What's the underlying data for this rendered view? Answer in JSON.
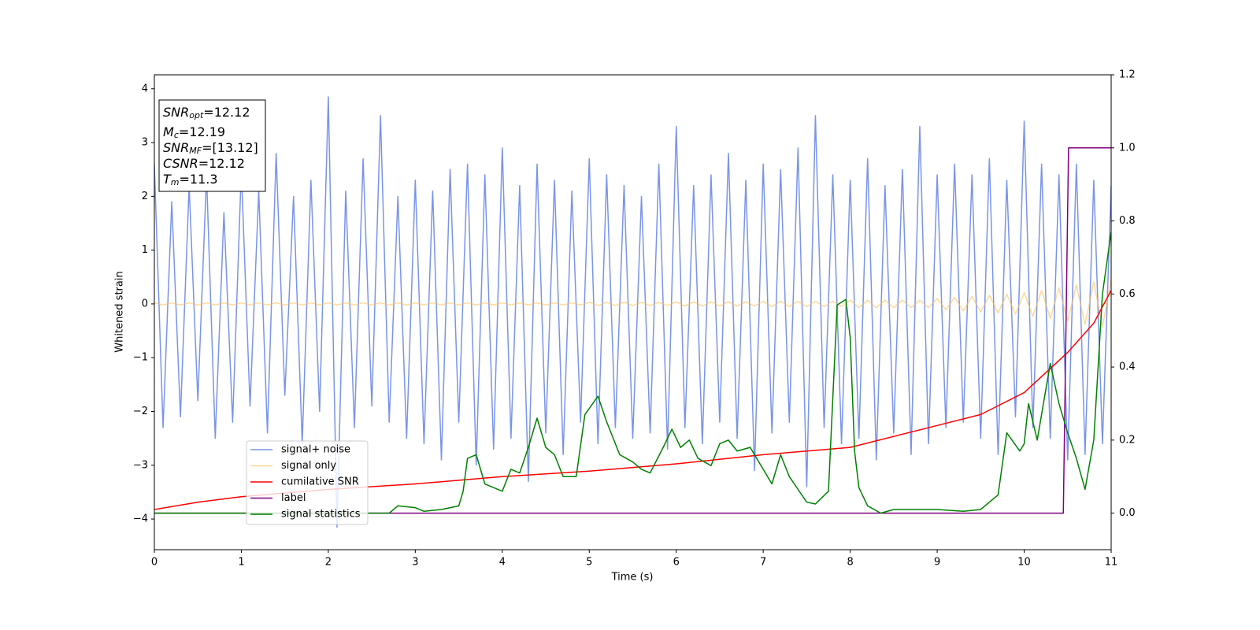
{
  "chart_data": {
    "type": "line",
    "xlabel": "Time (s)",
    "ylabel": "Whitened strain",
    "xlim": [
      0,
      11
    ],
    "xticks": [
      0,
      1,
      2,
      3,
      4,
      5,
      6,
      7,
      8,
      9,
      10,
      11
    ],
    "ylim": [
      -4.57,
      4.26
    ],
    "yticks": [
      {
        "value": -4,
        "label": "−4"
      },
      {
        "value": -3,
        "label": "−3"
      },
      {
        "value": -2,
        "label": "−2"
      },
      {
        "value": -1,
        "label": "−1"
      },
      0,
      1,
      2,
      3,
      4
    ],
    "y2lim": [
      -0.1,
      1.2
    ],
    "y2ticks": [
      {
        "value": 0,
        "label": "0.0"
      },
      0.2,
      0.4,
      0.6,
      0.8,
      {
        "value": 1,
        "label": "1.0"
      },
      1.2
    ],
    "grid": false,
    "legend_loc": "lower left",
    "annotation": [
      {
        "text": "SNR",
        "sub": "opt",
        "rest": "=12.12"
      },
      {
        "text": "M",
        "sub": "c",
        "rest": "=12.19"
      },
      {
        "text": "SNR",
        "sub": "MF",
        "rest": "=[13.12]"
      },
      {
        "text": "CSNR",
        "rest": "=12.12"
      },
      {
        "text": "T",
        "sub": "m",
        "rest": "=11.3"
      }
    ],
    "x": [
      0,
      0.1,
      0.2,
      0.3,
      0.4,
      0.5,
      0.6,
      0.7,
      0.8,
      0.9,
      1,
      1.1,
      1.2,
      1.3,
      1.4,
      1.5,
      1.6,
      1.7,
      1.8,
      1.9,
      2,
      2.1,
      2.2,
      2.3,
      2.4,
      2.5,
      2.6,
      2.7,
      2.8,
      2.9,
      3,
      3.1,
      3.2,
      3.3,
      3.4,
      3.5,
      3.6,
      3.7,
      3.8,
      3.9,
      4,
      4.1,
      4.2,
      4.3,
      4.4,
      4.5,
      4.6,
      4.7,
      4.8,
      4.9,
      5,
      5.1,
      5.2,
      5.3,
      5.4,
      5.5,
      5.6,
      5.7,
      5.8,
      5.9,
      6,
      6.1,
      6.2,
      6.3,
      6.4,
      6.5,
      6.6,
      6.7,
      6.8,
      6.9,
      7,
      7.1,
      7.2,
      7.3,
      7.4,
      7.5,
      7.6,
      7.7,
      7.8,
      7.9,
      8,
      8.1,
      8.2,
      8.3,
      8.4,
      8.5,
      8.6,
      8.7,
      8.8,
      8.9,
      9,
      9.1,
      9.2,
      9.3,
      9.4,
      9.5,
      9.6,
      9.7,
      9.8,
      9.9,
      10,
      10.1,
      10.2,
      10.3,
      10.4,
      10.5,
      10.6,
      10.7,
      10.8,
      10.9,
      11
    ],
    "series": [
      {
        "name": "signal+ noise",
        "color": "#7994e8",
        "values": [
          2.6,
          -2.3,
          1.9,
          -2.1,
          2.2,
          -1.8,
          2.4,
          -2.5,
          1.7,
          -2.2,
          2.5,
          -1.9,
          2.1,
          -2.4,
          2.8,
          -1.7,
          2,
          -2.6,
          2.3,
          -2,
          3.85,
          -4.15,
          2.1,
          -2.3,
          2.7,
          -1.9,
          3.5,
          -2.2,
          2,
          -2.5,
          2.3,
          -2.6,
          2.1,
          -2.9,
          2.5,
          -2.2,
          2.6,
          -3,
          2.4,
          -2.7,
          2.9,
          -2.5,
          2.2,
          -3.3,
          2.6,
          -2.4,
          2.3,
          -2.8,
          2.1,
          -2.2,
          2.7,
          -2.6,
          2.4,
          -2.3,
          2.2,
          -2.5,
          2,
          -2.4,
          2.6,
          -2.7,
          3.3,
          -2.3,
          2.2,
          -2.6,
          2.4,
          -2.2,
          2.8,
          -2.5,
          2.3,
          -3.1,
          2.6,
          -2.4,
          2.5,
          -2.2,
          2.9,
          -3.4,
          3.5,
          -2.3,
          2.4,
          -2.6,
          2.3,
          -2.5,
          2.7,
          -2.9,
          2.2,
          -2.4,
          2.5,
          -2.8,
          3.3,
          -2.6,
          2.4,
          -2.3,
          2.6,
          -2.2,
          2.4,
          -2.5,
          2.7,
          -2.8,
          2.3,
          -2.1,
          3.4,
          -2.3,
          2.6,
          -2.5,
          2.4,
          -2.9,
          2.6,
          -2.8,
          2.3,
          -2.6,
          2.2
        ]
      },
      {
        "name": "signal only",
        "color": "#fdbf5a",
        "alpha": 0.6,
        "values": [
          0.02,
          -0.02,
          0.02,
          -0.02,
          0.02,
          -0.02,
          0.02,
          -0.02,
          0.02,
          -0.02,
          0.02,
          -0.02,
          0.02,
          -0.02,
          0.02,
          -0.02,
          0.02,
          -0.02,
          0.02,
          -0.02,
          0.02,
          -0.02,
          0.02,
          -0.02,
          0.02,
          -0.02,
          0.02,
          -0.02,
          0.02,
          -0.02,
          0.02,
          -0.02,
          0.02,
          -0.02,
          0.02,
          -0.02,
          0.02,
          -0.02,
          0.02,
          -0.02,
          0.02,
          -0.02,
          0.02,
          -0.02,
          0.02,
          -0.02,
          0.02,
          -0.02,
          0.02,
          -0.02,
          0.03,
          -0.03,
          0.03,
          -0.03,
          0.03,
          -0.03,
          0.03,
          -0.03,
          0.03,
          -0.03,
          0.04,
          -0.04,
          0.04,
          -0.04,
          0.04,
          -0.04,
          0.04,
          -0.04,
          0.04,
          -0.04,
          0.05,
          -0.05,
          0.05,
          -0.05,
          0.05,
          -0.05,
          0.05,
          -0.05,
          0.05,
          -0.05,
          0.07,
          -0.07,
          0.07,
          -0.07,
          0.07,
          -0.07,
          0.07,
          -0.07,
          0.07,
          -0.07,
          0.1,
          -0.11,
          0.12,
          -0.13,
          0.14,
          -0.15,
          0.16,
          -0.17,
          0.18,
          -0.19,
          0.21,
          -0.23,
          0.25,
          -0.27,
          0.3,
          -0.32,
          0.35,
          -0.38,
          0.41,
          -0.43,
          0.45
        ]
      },
      {
        "name": "cumilative SNR",
        "color": "#ff0000",
        "axis": "y2",
        "x": [
          0,
          0.5,
          1,
          2,
          3,
          4,
          5,
          6,
          7,
          8,
          9,
          9.5,
          10,
          10.5,
          10.8,
          11
        ],
        "values": [
          0.01,
          0.03,
          0.045,
          0.065,
          0.08,
          0.1,
          0.115,
          0.135,
          0.16,
          0.18,
          0.24,
          0.27,
          0.33,
          0.44,
          0.52,
          0.61
        ]
      },
      {
        "name": "label",
        "color": "#800080",
        "axis": "y2",
        "x": [
          0,
          10.45,
          10.51,
          11
        ],
        "values": [
          0,
          0,
          1,
          1
        ]
      },
      {
        "name": "signal statistics",
        "color": "#008000",
        "axis": "y2",
        "x": [
          0,
          2.7,
          2.8,
          3,
          3.1,
          3.3,
          3.5,
          3.55,
          3.6,
          3.7,
          3.8,
          3.9,
          4,
          4.1,
          4.2,
          4.3,
          4.4,
          4.5,
          4.6,
          4.7,
          4.85,
          4.95,
          5.1,
          5.2,
          5.35,
          5.5,
          5.6,
          5.7,
          5.85,
          5.95,
          6.05,
          6.15,
          6.25,
          6.4,
          6.5,
          6.6,
          6.7,
          6.85,
          7,
          7.1,
          7.2,
          7.3,
          7.5,
          7.6,
          7.75,
          7.85,
          7.95,
          8,
          8.05,
          8.1,
          8.2,
          8.35,
          8.5,
          8.7,
          9,
          9.3,
          9.5,
          9.6,
          9.7,
          9.8,
          9.95,
          10,
          10.05,
          10.15,
          10.3,
          10.4,
          10.5,
          10.6,
          10.7,
          10.8,
          10.9,
          11
        ],
        "values": [
          0,
          0,
          0.02,
          0.015,
          0.005,
          0.01,
          0.02,
          0.06,
          0.15,
          0.16,
          0.08,
          0.07,
          0.06,
          0.12,
          0.11,
          0.18,
          0.26,
          0.18,
          0.16,
          0.1,
          0.1,
          0.27,
          0.32,
          0.25,
          0.16,
          0.14,
          0.12,
          0.11,
          0.18,
          0.23,
          0.18,
          0.2,
          0.15,
          0.13,
          0.19,
          0.2,
          0.17,
          0.18,
          0.12,
          0.08,
          0.16,
          0.1,
          0.03,
          0.025,
          0.06,
          0.57,
          0.585,
          0.48,
          0.17,
          0.07,
          0.02,
          0,
          0.01,
          0.01,
          0.01,
          0.005,
          0.01,
          0.03,
          0.05,
          0.22,
          0.17,
          0.19,
          0.3,
          0.2,
          0.41,
          0.3,
          0.22,
          0.15,
          0.065,
          0.2,
          0.6,
          0.77
        ]
      }
    ]
  }
}
